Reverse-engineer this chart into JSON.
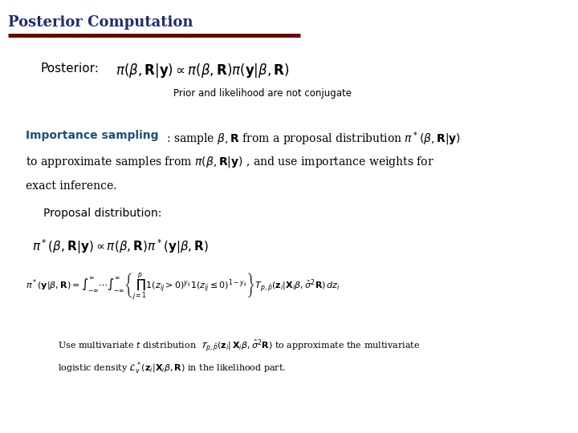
{
  "title": "Posterior Computation",
  "title_color": "#1F2D6E",
  "title_underline_color": "#6B0000",
  "bg_color": "#FFFFFF",
  "figsize": [
    7.2,
    5.4
  ],
  "dpi": 100,
  "posterior_label": "Posterior:",
  "posterior_formula": "$\\pi(\\beta, \\mathbf{R}|\\mathbf{y}) \\propto \\pi(\\beta, \\mathbf{R})\\pi(\\mathbf{y}|\\beta, \\mathbf{R})$",
  "prior_note": "Prior and likelihood are not conjugate",
  "importance_label": "Importance sampling",
  "importance_text1": ": sample $\\beta, \\mathbf{R}$ from a proposal distribution $\\pi^*(\\beta, \\mathbf{R}|\\mathbf{y})$",
  "importance_text2": "to approximate samples from $\\pi(\\beta, \\mathbf{R}|\\mathbf{y})$ , and use importance weights for",
  "importance_text3": "exact inference.",
  "proposal_label": "Proposal distribution:",
  "proposal_eq1": "$\\pi^*(\\beta, \\mathbf{R}|\\mathbf{y}) \\propto \\pi(\\beta, \\mathbf{R})\\pi^*(\\mathbf{y}|\\beta, \\mathbf{R})$",
  "proposal_eq2": "$\\pi^*(\\mathbf{y}|\\beta, \\mathbf{R})= \\int_{-\\infty}^{\\infty} \\cdots \\int_{-\\infty}^{\\infty} \\left\\{ \\prod_{j=1}^{p} 1(z_{ij}>0)^{y_{ij}} 1(z_{ij}\\leq 0)^{1-y_{ij}} \\right\\} T_{p,\\hat{p}}(\\mathbf{z}_i|\\mathbf{X}_i\\beta, \\hat{\\sigma}^2\\mathbf{R})\\, dz_i$",
  "note_text1": "Use multivariate $t$ distribution  $\\mathcal{T}_{p,\\hat{p}}(\\mathbf{z}_i|\\, \\mathbf{X}_i\\beta, \\hat{\\sigma}^2\\mathbf{R})$ to approximate the multivariate",
  "note_text2": "logistic density $\\mathcal{L}^*_v(\\mathbf{z}_i|\\mathbf{X}_i\\beta, \\mathbf{R})$ in the likelihood part.",
  "importance_color": "#1F4E79",
  "text_color": "#000000",
  "formula_color": "#000000",
  "title_fontsize": 13,
  "posterior_label_fontsize": 11,
  "posterior_formula_fontsize": 12,
  "prior_note_fontsize": 8.5,
  "importance_fontsize": 10,
  "body_fontsize": 10,
  "proposal_label_fontsize": 10,
  "proposal_eq1_fontsize": 11,
  "proposal_eq2_fontsize": 8,
  "note_fontsize": 8
}
